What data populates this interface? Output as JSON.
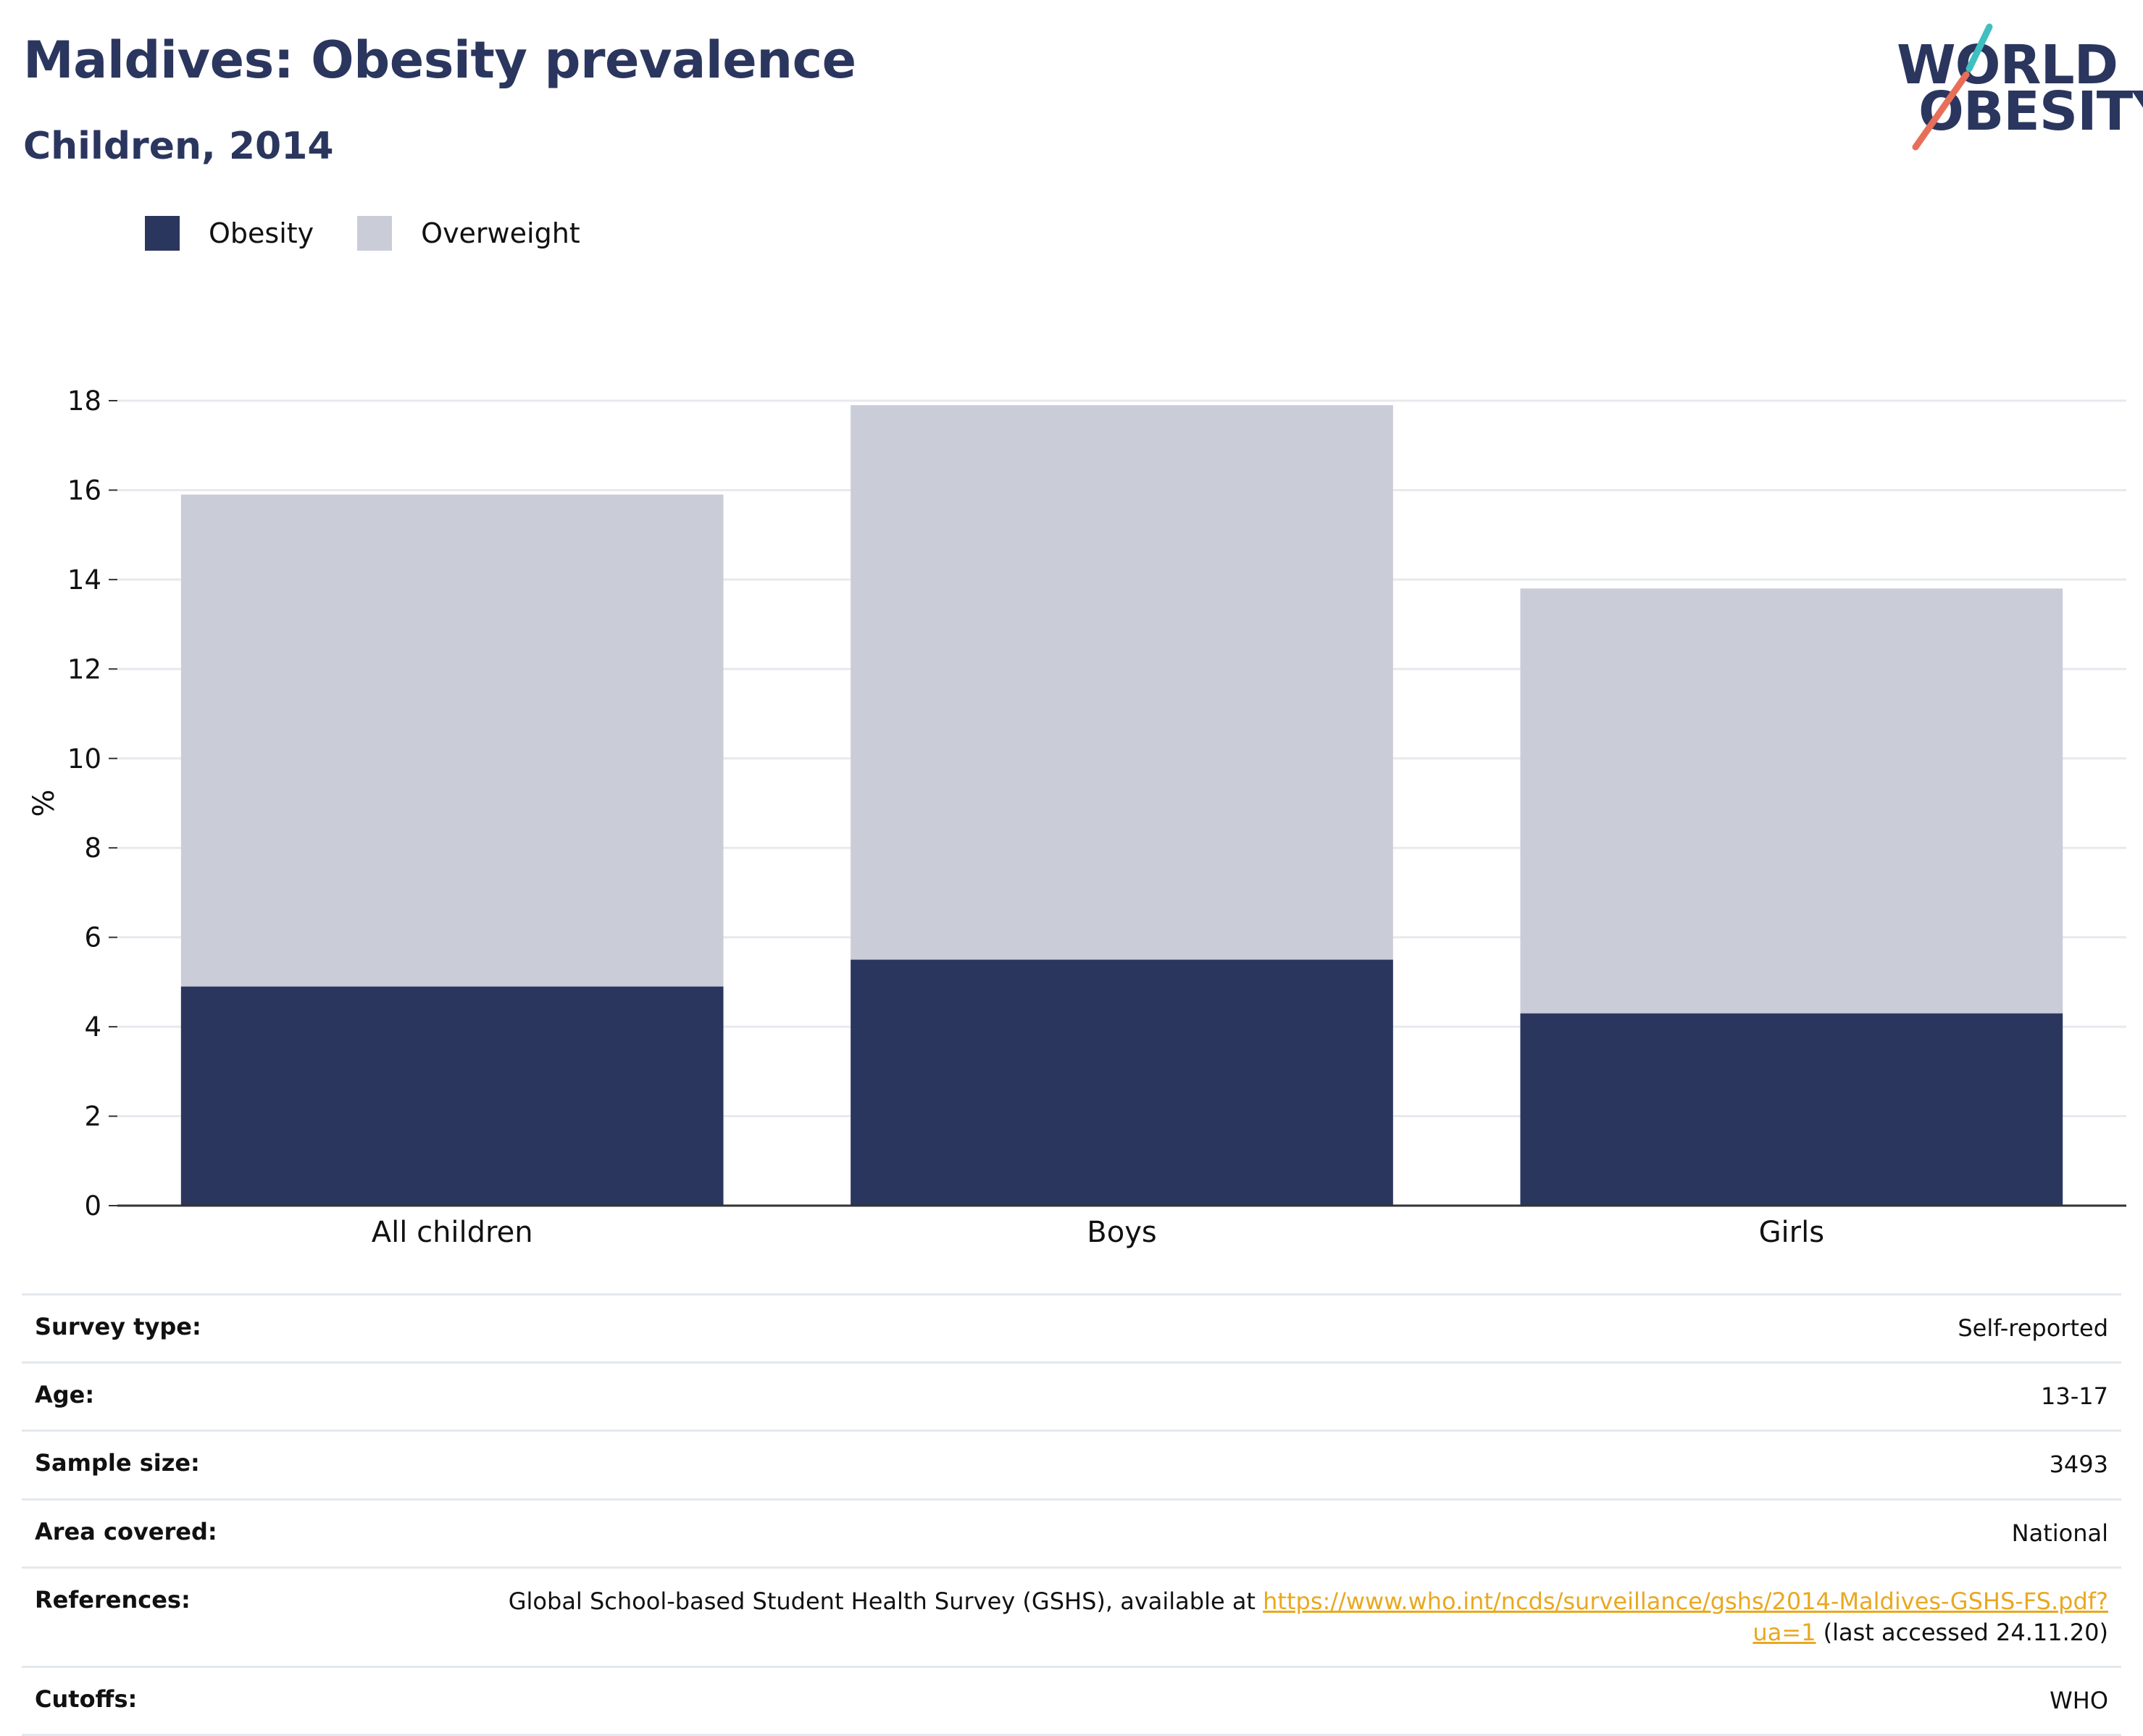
{
  "header": {
    "title": "Maldives: Obesity prevalence",
    "subtitle": "Children, 2014"
  },
  "logo": {
    "line1": "WORLD",
    "line2": "OBESITY",
    "slash_colors": [
      "#3fbfbf",
      "#e76f5a"
    ]
  },
  "colors": {
    "obesity": "#2b365f",
    "overweight": "#cacdd8",
    "grid": "#e8e9ee",
    "axis": "#333333",
    "link": "#e9a820"
  },
  "chart_data": {
    "type": "bar",
    "stacked": true,
    "categories": [
      "All children",
      "Boys",
      "Girls"
    ],
    "series": [
      {
        "name": "Obesity",
        "values": [
          4.9,
          5.5,
          4.3
        ]
      },
      {
        "name": "Overweight",
        "values": [
          11.0,
          12.4,
          9.5
        ]
      }
    ],
    "ylabel": "%",
    "xlabel": "",
    "ylim": [
      0,
      18
    ],
    "yticks": [
      0,
      2,
      4,
      6,
      8,
      10,
      12,
      14,
      16,
      18
    ],
    "grid": true,
    "legend_position": "top-left"
  },
  "metadata": [
    {
      "label": "Survey type:",
      "value": "Self-reported"
    },
    {
      "label": "Age:",
      "value": "13-17"
    },
    {
      "label": "Sample size:",
      "value": "3493"
    },
    {
      "label": "Area covered:",
      "value": "National"
    },
    {
      "label": "References:",
      "value_prefix": "Global School-based Student Health Survey (GSHS), available at ",
      "link_text": "https://www.who.int/ncds/surveillance/gshs/2014-Maldives-GSHS-FS.pdf?ua=1",
      "value_suffix": " (last accessed 24.11.20)"
    },
    {
      "label": "Cutoffs:",
      "value": "WHO"
    }
  ]
}
